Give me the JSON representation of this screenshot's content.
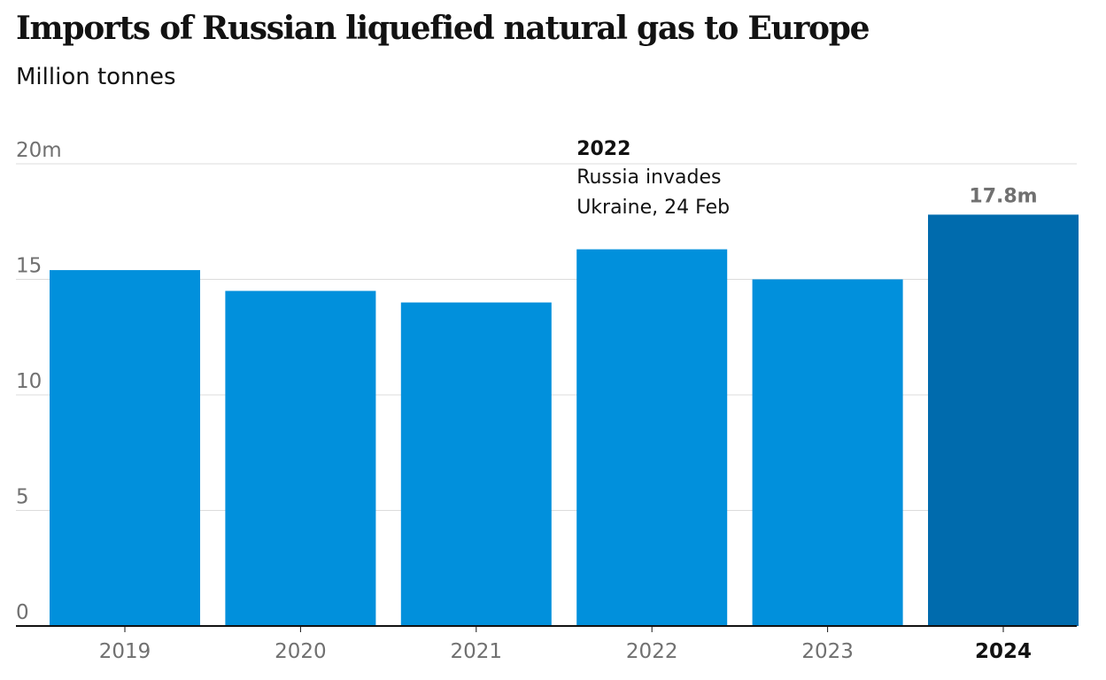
{
  "chart_data": {
    "type": "bar",
    "title": "Imports of Russian liquefied natural gas to Europe",
    "subtitle": "Million tonnes",
    "categories": [
      "2019",
      "2020",
      "2021",
      "2022",
      "2023",
      "2024"
    ],
    "values": [
      15.4,
      14.5,
      14.0,
      16.3,
      15.0,
      17.8
    ],
    "highlight_category": "2024",
    "ylim": [
      0,
      20
    ],
    "yticks": [
      0,
      5,
      10,
      15,
      20
    ],
    "ytick_labels": [
      "0",
      "5",
      "10",
      "15",
      "20m"
    ],
    "grid": true,
    "value_labels": [
      {
        "category": "2024",
        "text": "17.8m"
      }
    ],
    "annotation": {
      "category": "2022",
      "title": "2022",
      "lines": [
        "Russia invades",
        "Ukraine, 24 Feb"
      ]
    },
    "colors": {
      "bar": "#0190dc",
      "bar_highlight": "#006bad",
      "grid": "#dcdcdc",
      "axis": "#121212"
    }
  }
}
